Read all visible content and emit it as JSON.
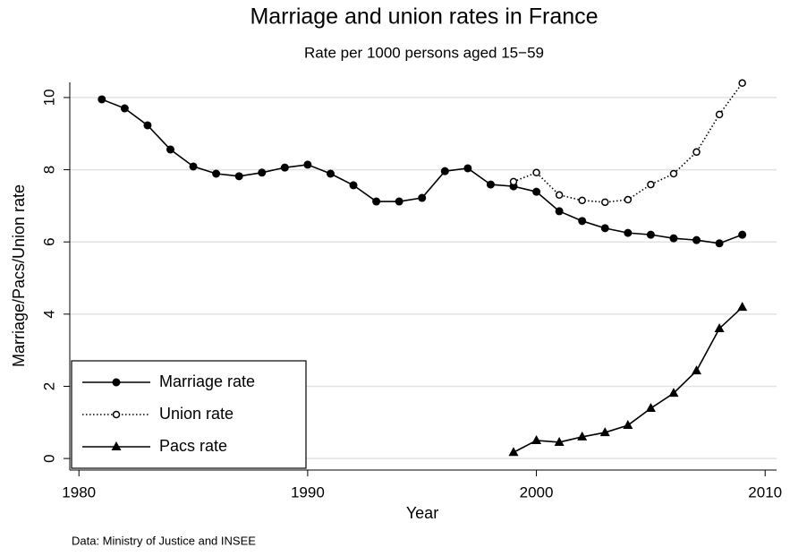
{
  "chart_data": {
    "type": "line",
    "title": "Marriage and union rates in France",
    "subtitle": "Rate per 1000 persons aged 15−59",
    "x_label": "Year",
    "y_label": "Marriage/Pacs/Union rate",
    "note": "Data: Ministry of Justice and INSEE",
    "x": [
      1981,
      1982,
      1983,
      1984,
      1985,
      1986,
      1987,
      1988,
      1989,
      1990,
      1991,
      1992,
      1993,
      1994,
      1995,
      1996,
      1997,
      1998,
      1999,
      2000,
      2001,
      2002,
      2003,
      2004,
      2005,
      2006,
      2007,
      2008,
      2009
    ],
    "series": [
      {
        "name": "Marriage rate",
        "color": "#000000",
        "marker": "circle",
        "dash": "solid",
        "values": [
          9.95,
          9.7,
          9.23,
          8.56,
          8.09,
          7.89,
          7.82,
          7.92,
          8.06,
          8.14,
          7.89,
          7.57,
          7.12,
          7.12,
          7.22,
          7.96,
          8.04,
          7.59,
          7.54,
          7.39,
          6.85,
          6.58,
          6.38,
          6.25,
          6.2,
          6.1,
          6.05,
          5.96,
          6.2
        ]
      },
      {
        "name": "Union rate",
        "color": "#000000",
        "marker": "hollow-circle",
        "dash": "dotted",
        "values": [
          null,
          null,
          null,
          null,
          null,
          null,
          null,
          null,
          null,
          null,
          null,
          null,
          null,
          null,
          null,
          null,
          null,
          null,
          7.67,
          7.92,
          7.3,
          7.15,
          7.1,
          7.17,
          7.59,
          7.89,
          8.49,
          9.53,
          10.4
        ]
      },
      {
        "name": "Pacs rate",
        "color": "#000000",
        "marker": "triangle",
        "dash": "solid",
        "values": [
          null,
          null,
          null,
          null,
          null,
          null,
          null,
          null,
          null,
          null,
          null,
          null,
          null,
          null,
          null,
          null,
          null,
          null,
          0.17,
          0.5,
          0.45,
          0.6,
          0.72,
          0.92,
          1.39,
          1.81,
          2.43,
          3.6,
          4.19
        ]
      }
    ],
    "xlim": [
      1979.6,
      2010.5
    ],
    "ylim": [
      -0.32,
      10.42
    ],
    "xticks": [
      1980,
      1990,
      2000,
      2010
    ],
    "yticks": [
      0,
      2,
      4,
      6,
      8,
      10
    ],
    "grid": true,
    "legend": "lower-left"
  }
}
